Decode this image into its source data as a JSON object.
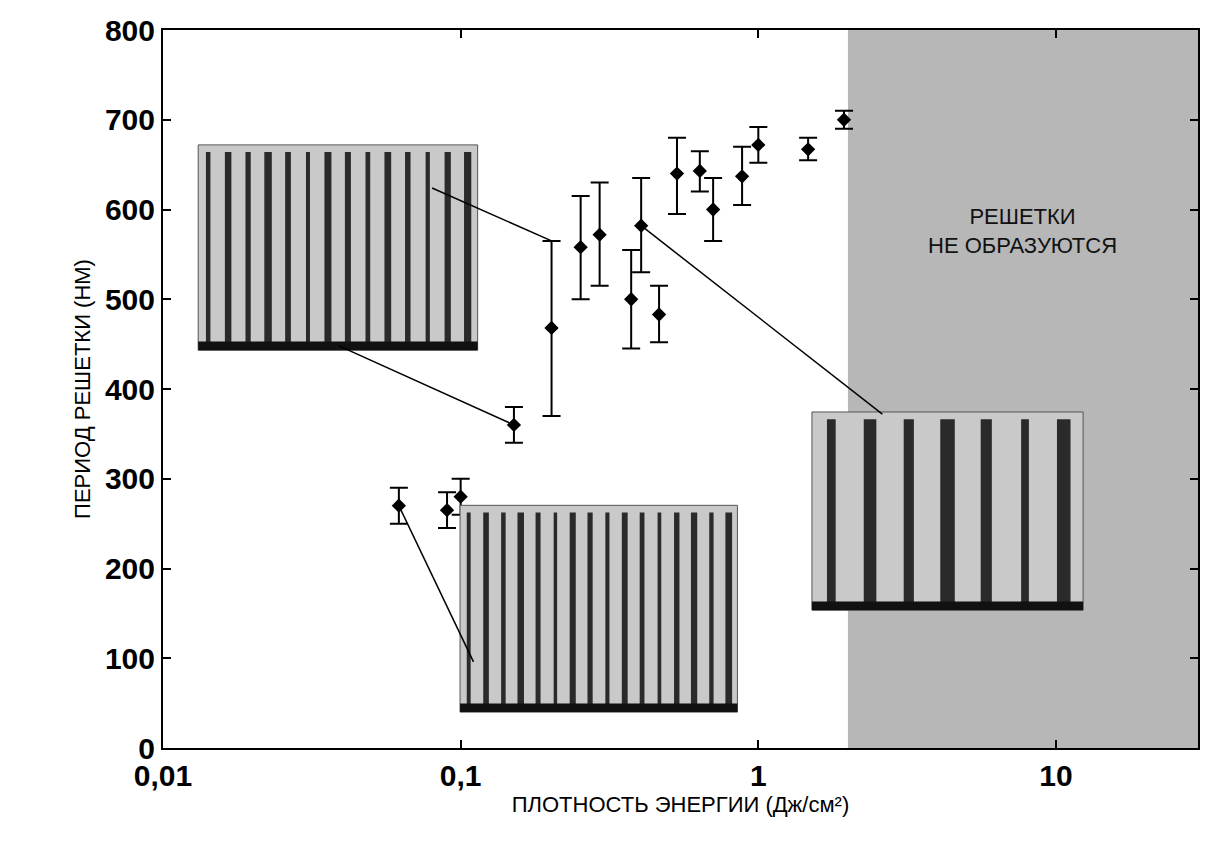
{
  "chart_data": {
    "type": "scatter",
    "x_label": "ПЛОТНОСТЬ ЭНЕРГИИ (Дж/см²)",
    "y_label": "ПЕРИОД РЕШЕТКИ (НМ)",
    "x": [
      0.062,
      0.09,
      0.1,
      0.151,
      0.202,
      0.253,
      0.293,
      0.374,
      0.404,
      0.464,
      0.533,
      0.636,
      0.705,
      0.882,
      1.0,
      1.47,
      1.94
    ],
    "values": [
      270,
      265,
      280,
      360,
      468,
      558,
      572,
      500,
      582,
      483,
      640,
      643,
      600,
      637,
      672,
      667,
      700
    ],
    "error_minus": [
      20,
      20,
      20,
      20,
      98,
      58,
      57,
      55,
      52,
      31,
      45,
      23,
      35,
      32,
      20,
      12,
      10
    ],
    "error_plus": [
      20,
      20,
      20,
      20,
      97,
      57,
      58,
      55,
      53,
      32,
      40,
      22,
      35,
      33,
      20,
      13,
      10
    ],
    "color": "#000000",
    "marker": "diamond",
    "log": "x",
    "grid": false,
    "xlim": [
      0.01,
      30
    ],
    "xticks": [
      {
        "value": 0.01,
        "label": "0,01"
      },
      {
        "value": 0.1,
        "label": "0,1"
      },
      1,
      10
    ],
    "ylim": [
      0,
      800
    ],
    "yticks": [
      0,
      100,
      200,
      300,
      400,
      500,
      600,
      700,
      800
    ],
    "shaded_region": {
      "x_from": 2,
      "label": "РЕШЕТКИ НЕ ОБРАЗУЮТСЯ"
    }
  }
}
